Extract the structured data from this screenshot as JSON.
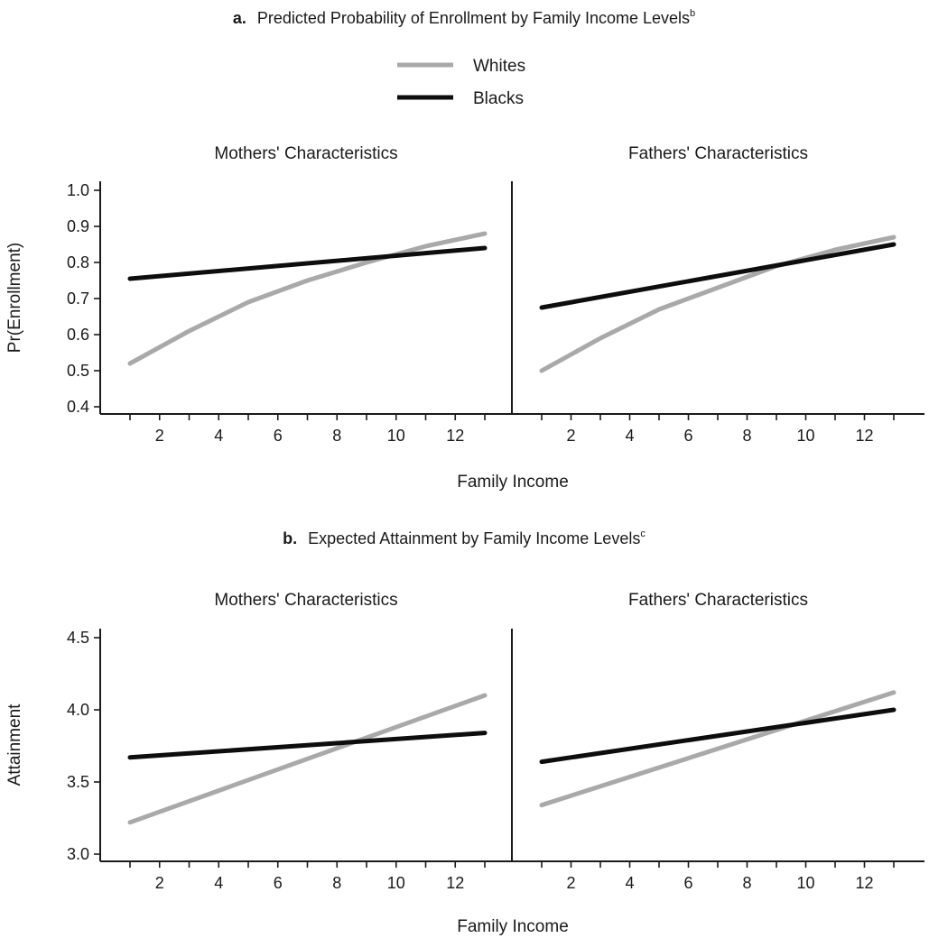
{
  "legend": [
    {
      "name": "Whites",
      "color": "#a9a9a9"
    },
    {
      "name": "Blacks",
      "color": "#0d0d0d"
    }
  ],
  "chart_data": [
    {
      "type": "line",
      "panel_letter": "a.",
      "title": "Predicted Probability of Enrollment by Family Income Levels",
      "title_sup": "b",
      "xlabel": "Family Income",
      "ylabel": "Pr(Enrollment)",
      "ylim": [
        0.4,
        1.0
      ],
      "yticks": [
        "0.4",
        "0.5",
        "0.6",
        "0.7",
        "0.8",
        "0.9",
        "1.0"
      ],
      "ytick_values": [
        0.4,
        0.5,
        0.6,
        0.7,
        0.8,
        0.9,
        1.0
      ],
      "xlim": [
        0,
        14
      ],
      "xticks": [
        2,
        4,
        6,
        8,
        10,
        12
      ],
      "facets": [
        {
          "label": "Mothers' Characteristics",
          "series": [
            {
              "name": "Whites",
              "x": [
                1,
                3,
                5,
                7,
                9,
                11,
                13
              ],
              "y": [
                0.52,
                0.61,
                0.69,
                0.75,
                0.8,
                0.845,
                0.88
              ]
            },
            {
              "name": "Blacks",
              "x": [
                1,
                13
              ],
              "y": [
                0.755,
                0.84
              ]
            }
          ]
        },
        {
          "label": "Fathers' Characteristics",
          "series": [
            {
              "name": "Whites",
              "x": [
                1,
                3,
                5,
                7,
                9,
                11,
                13
              ],
              "y": [
                0.5,
                0.59,
                0.67,
                0.73,
                0.79,
                0.835,
                0.87
              ]
            },
            {
              "name": "Blacks",
              "x": [
                1,
                13
              ],
              "y": [
                0.675,
                0.85
              ]
            }
          ]
        }
      ]
    },
    {
      "type": "line",
      "panel_letter": "b.",
      "title": "Expected Attainment by Family Income Levels",
      "title_sup": "c",
      "xlabel": "Family Income",
      "ylabel": "Attainment",
      "ylim": [
        3.0,
        4.5
      ],
      "yticks": [
        "3.0",
        "3.5",
        "4.0",
        "4.5"
      ],
      "ytick_values": [
        3.0,
        3.5,
        4.0,
        4.5
      ],
      "xlim": [
        0,
        14
      ],
      "xticks": [
        2,
        4,
        6,
        8,
        10,
        12
      ],
      "facets": [
        {
          "label": "Mothers' Characteristics",
          "series": [
            {
              "name": "Whites",
              "x": [
                1,
                13
              ],
              "y": [
                3.22,
                4.1
              ]
            },
            {
              "name": "Blacks",
              "x": [
                1,
                13
              ],
              "y": [
                3.67,
                3.84
              ]
            }
          ]
        },
        {
          "label": "Fathers' Characteristics",
          "series": [
            {
              "name": "Whites",
              "x": [
                1,
                13
              ],
              "y": [
                3.34,
                4.12
              ]
            },
            {
              "name": "Blacks",
              "x": [
                1,
                13
              ],
              "y": [
                3.64,
                4.0
              ]
            }
          ]
        }
      ]
    }
  ]
}
